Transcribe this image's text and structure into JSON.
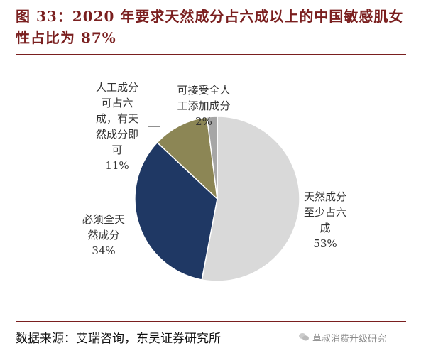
{
  "title": "图 33：2020 年要求天然成分占六成以上的中国敏感肌女性占比为 87%",
  "source": "数据来源：艾瑞咨询，东吴证券研究所",
  "watermark": "草叔消费升级研究",
  "chart_data": {
    "type": "pie",
    "slices": [
      {
        "label": "天然成分至少占六成",
        "value": 53,
        "value_label": "53%",
        "color": "#d9d9d9"
      },
      {
        "label": "必须全天然成分",
        "value": 34,
        "value_label": "34%",
        "color": "#1f3864"
      },
      {
        "label": "人工成分可占六成，有天然成分即可",
        "value": 11,
        "value_label": "11%",
        "color": "#8c8655"
      },
      {
        "label": "可接受全人工添加成分",
        "value": 2,
        "value_label": "2%",
        "color": "#a6a6a6"
      }
    ]
  },
  "labels": {
    "natural": "天然成分\n至少占六\n成\n53%",
    "all_natural": "必须全天\n然成分\n34%",
    "artificial": "人工成分\n可占六\n成，有天\n然成分即\n可\n11%",
    "all_artificial": "可接受全人\n工添加成分\n2%"
  }
}
